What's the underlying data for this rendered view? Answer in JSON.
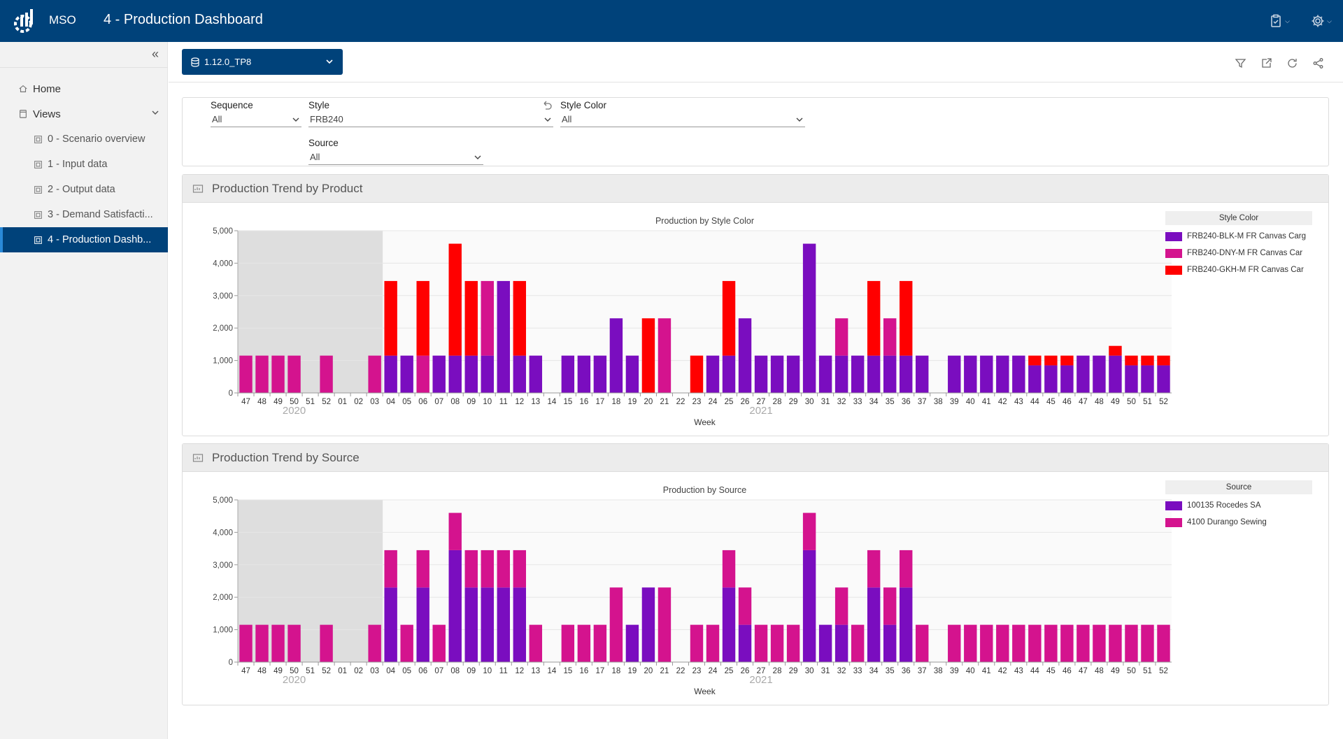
{
  "header": {
    "app_name": "MSO",
    "page_title": "4 - Production Dashboard",
    "brand_color": "#00427a",
    "icons": [
      "clipboard-check-icon",
      "gear-icon"
    ]
  },
  "sidebar": {
    "items": [
      {
        "label": "Home",
        "icon": "home-icon"
      },
      {
        "label": "Views",
        "icon": "views-icon"
      },
      {
        "label": "0 - Scenario overview",
        "icon": "view-page-icon"
      },
      {
        "label": "1 - Input data",
        "icon": "view-page-icon"
      },
      {
        "label": "2 - Output data",
        "icon": "view-page-icon"
      },
      {
        "label": "3 - Demand Satisfacti...",
        "icon": "view-page-icon"
      },
      {
        "label": "4 - Production Dashb...",
        "icon": "view-page-icon"
      }
    ],
    "active_index": 6
  },
  "toolbar": {
    "scenario": "1.12.0_TP8",
    "icons": [
      "filter-icon",
      "open-external-icon",
      "refresh-icon",
      "share-icon"
    ]
  },
  "filters": {
    "sequence": {
      "label": "Sequence",
      "value": "All"
    },
    "style": {
      "label": "Style",
      "value": "FRB240"
    },
    "style_color": {
      "label": "Style Color",
      "value": "All"
    },
    "source": {
      "label": "Source",
      "value": "All"
    }
  },
  "panels": [
    {
      "title": "Production Trend by Product",
      "legend_title": "Style Color"
    },
    {
      "title": "Production Trend by Source",
      "legend_title": "Source"
    }
  ],
  "chart_data": [
    {
      "type": "bar",
      "stacked": true,
      "title": "Production by Style Color",
      "xlabel": "Week",
      "ylabel": "",
      "ylim": [
        0,
        5000
      ],
      "yticks": [
        "0",
        "1,000",
        "2,000",
        "3,000",
        "4,000",
        "5,000"
      ],
      "categories": [
        "47",
        "48",
        "49",
        "50",
        "51",
        "52",
        "01",
        "02",
        "03",
        "04",
        "05",
        "06",
        "07",
        "08",
        "09",
        "10",
        "11",
        "12",
        "13",
        "14",
        "15",
        "16",
        "17",
        "18",
        "19",
        "20",
        "21",
        "22",
        "23",
        "24",
        "25",
        "26",
        "27",
        "28",
        "29",
        "30",
        "31",
        "32",
        "33",
        "34",
        "35",
        "36",
        "37",
        "38",
        "39",
        "40",
        "41",
        "42",
        "43",
        "44",
        "45",
        "46",
        "47",
        "48",
        "49",
        "50",
        "51",
        "52"
      ],
      "year_labels": [
        {
          "label": "2020",
          "at_index": 3
        },
        {
          "label": "2021",
          "at_index": 32
        }
      ],
      "shaded_range": [
        0,
        8
      ],
      "legend_position": "right",
      "series": [
        {
          "name": "FRB240-BLK-M FR Canvas Carg",
          "color": "#7a0dbf",
          "values": [
            0,
            0,
            0,
            0,
            0,
            0,
            0,
            0,
            0,
            1150,
            1150,
            0,
            1150,
            1150,
            1150,
            1150,
            3450,
            1150,
            1150,
            0,
            1150,
            1150,
            1150,
            2300,
            1150,
            0,
            0,
            0,
            0,
            1150,
            1150,
            2300,
            1150,
            1150,
            1150,
            4600,
            1150,
            1150,
            1150,
            1150,
            1150,
            1150,
            1150,
            0,
            1150,
            1150,
            1150,
            1150,
            1150,
            850,
            850,
            850,
            1150,
            1150,
            1150,
            850,
            850,
            850
          ]
        },
        {
          "name": "FRB240-DNY-M FR Canvas Car",
          "color": "#d4138e",
          "values": [
            1150,
            1150,
            1150,
            1150,
            0,
            1150,
            0,
            0,
            1150,
            0,
            0,
            1150,
            0,
            0,
            0,
            2300,
            0,
            0,
            0,
            0,
            0,
            0,
            0,
            0,
            0,
            0,
            2300,
            0,
            0,
            0,
            0,
            0,
            0,
            0,
            0,
            0,
            0,
            1150,
            0,
            0,
            1150,
            0,
            0,
            0,
            0,
            0,
            0,
            0,
            0,
            0,
            0,
            0,
            0,
            0,
            0,
            0,
            0,
            0
          ]
        },
        {
          "name": "FRB240-GKH-M FR Canvas Car",
          "color": "#ff0000",
          "values": [
            0,
            0,
            0,
            0,
            0,
            0,
            0,
            0,
            0,
            2300,
            0,
            2300,
            0,
            3450,
            2300,
            0,
            0,
            2300,
            0,
            0,
            0,
            0,
            0,
            0,
            0,
            2300,
            0,
            0,
            1150,
            0,
            2300,
            0,
            0,
            0,
            0,
            0,
            0,
            0,
            0,
            2300,
            0,
            2300,
            0,
            0,
            0,
            0,
            0,
            0,
            0,
            300,
            300,
            300,
            0,
            0,
            300,
            300,
            300,
            300
          ]
        }
      ]
    },
    {
      "type": "bar",
      "stacked": true,
      "title": "Production by Source",
      "xlabel": "Week",
      "ylabel": "",
      "ylim": [
        0,
        5000
      ],
      "yticks": [
        "0",
        "1,000",
        "2,000",
        "3,000",
        "4,000",
        "5,000"
      ],
      "categories": [
        "47",
        "48",
        "49",
        "50",
        "51",
        "52",
        "01",
        "02",
        "03",
        "04",
        "05",
        "06",
        "07",
        "08",
        "09",
        "10",
        "11",
        "12",
        "13",
        "14",
        "15",
        "16",
        "17",
        "18",
        "19",
        "20",
        "21",
        "22",
        "23",
        "24",
        "25",
        "26",
        "27",
        "28",
        "29",
        "30",
        "31",
        "32",
        "33",
        "34",
        "35",
        "36",
        "37",
        "38",
        "39",
        "40",
        "41",
        "42",
        "43",
        "44",
        "45",
        "46",
        "47",
        "48",
        "49",
        "50",
        "51",
        "52"
      ],
      "year_labels": [
        {
          "label": "2020",
          "at_index": 3
        },
        {
          "label": "2021",
          "at_index": 32
        }
      ],
      "shaded_range": [
        0,
        8
      ],
      "legend_position": "right",
      "series": [
        {
          "name": "100135 Rocedes SA",
          "color": "#7a0dbf",
          "values": [
            0,
            0,
            0,
            0,
            0,
            0,
            0,
            0,
            0,
            2300,
            0,
            2300,
            0,
            3450,
            2300,
            2300,
            2300,
            2300,
            0,
            0,
            0,
            0,
            0,
            0,
            1150,
            2300,
            0,
            0,
            0,
            0,
            2300,
            1150,
            0,
            0,
            0,
            3450,
            1150,
            1150,
            0,
            2300,
            1150,
            2300,
            0,
            0,
            0,
            0,
            0,
            0,
            0,
            0,
            0,
            0,
            0,
            0,
            0,
            0,
            0,
            0
          ]
        },
        {
          "name": "4100 Durango Sewing",
          "color": "#d4138e",
          "values": [
            1150,
            1150,
            1150,
            1150,
            0,
            1150,
            0,
            0,
            1150,
            1150,
            1150,
            1150,
            1150,
            1150,
            1150,
            1150,
            1150,
            1150,
            1150,
            0,
            1150,
            1150,
            1150,
            2300,
            0,
            0,
            2300,
            0,
            1150,
            1150,
            1150,
            1150,
            1150,
            1150,
            1150,
            1150,
            0,
            1150,
            1150,
            1150,
            1150,
            1150,
            1150,
            0,
            1150,
            1150,
            1150,
            1150,
            1150,
            1150,
            1150,
            1150,
            1150,
            1150,
            1150,
            1150,
            1150,
            1150
          ]
        }
      ]
    }
  ]
}
